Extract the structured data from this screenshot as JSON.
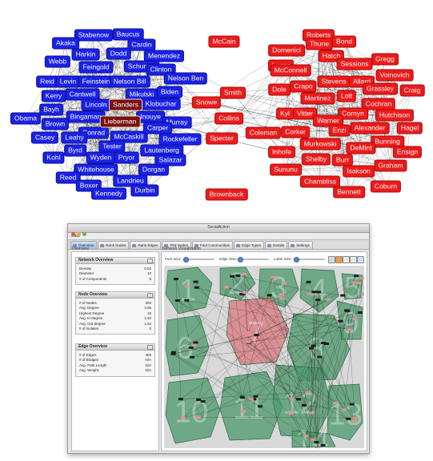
{
  "senate": {
    "democrats": [
      "Stabenow",
      "Baucus",
      "Akaka",
      "Cardin",
      "Harkin",
      "Dodd",
      "Webb",
      "Menendez",
      "Feingold",
      "Schumer",
      "Clinton",
      "Reid",
      "Levin",
      "Feinstein",
      "Nelson Bill",
      "Nelson Ben",
      "Kerry",
      "Cantwell",
      "Mikulski",
      "Biden",
      "Lincoln",
      "Klobuchar",
      "Bayh",
      "Obama",
      "Bingaman",
      "Inouye",
      "Brown",
      "Conrad",
      "Murray",
      "Casey",
      "Leahy",
      "McCaskill",
      "Carper",
      "Rockefeller",
      "Kohl",
      "Byrd",
      "Tester",
      "Wyden",
      "Pryor",
      "Lautenberg",
      "Whitehouse",
      "Dorgan",
      "Salazar",
      "Reed",
      "Boxer",
      "Landrieu",
      "Kennedy",
      "Durbin"
    ],
    "independents_highlighted": [
      "Sanders",
      "Lieberman"
    ],
    "bridging": [
      "McCain",
      "Snowe",
      "Smith",
      "Collins",
      "Specter",
      "Brownback"
    ],
    "republicans": [
      "Roberts",
      "Thune",
      "Bond",
      "Domenici",
      "Hatch",
      "Gregg",
      "Lugar",
      "Sessions",
      "Voinovich",
      "McConnell",
      "Stevens",
      "Allard",
      "Dole",
      "Crapo",
      "Grassley",
      "Craig",
      "Martinez",
      "Lott",
      "Cochran",
      "Kyl",
      "Vitter",
      "Cornyn",
      "Hutchison",
      "Corker",
      "Warner",
      "Coleman",
      "Enzi",
      "Alexander",
      "Hagel",
      "Murkowski",
      "Bunning",
      "Inhofe",
      "DeMint",
      "Ensign",
      "Shelby",
      "Burr",
      "Graham",
      "Sununu",
      "Isakson",
      "Chambliss",
      "Bennett",
      "Coburn"
    ]
  },
  "colors": {
    "democrat": "#1a21e8",
    "republican": "#ee1a1a",
    "highlighted": "#7a1010",
    "community_fill": "#4f9a6e",
    "community_highlight": "#d9777c"
  },
  "app": {
    "window_title": "SocialAction",
    "menu": [
      "Data"
    ],
    "tabs": [
      "Overview",
      "Rank Nodes",
      "Rank Edges",
      "Plot Nodes",
      "Find Communities",
      "Edge Types",
      "Details",
      "Settings"
    ],
    "active_tab": "Overview",
    "left_pane_label": "Overview",
    "right_pane_label": "Network Visualization",
    "sliders": {
      "font": "Font Size:",
      "edge": "Edge Size:",
      "label": "Label Size:"
    },
    "network_overview": {
      "title": "Network Overview",
      "rows": [
        {
          "label": "Density",
          "value": "0.02"
        },
        {
          "label": "Diameter",
          "value": "10"
        },
        {
          "label": "# of Components",
          "value": "8"
        }
      ]
    },
    "node_overview": {
      "title": "Node Overview",
      "rows": [
        {
          "label": "# of Nodes",
          "value": "200"
        },
        {
          "label": "Avg. Degree",
          "value": "3.05"
        },
        {
          "label": "Highest Degree",
          "value": "19"
        },
        {
          "label": "Avg. In-degree",
          "value": "1.52"
        },
        {
          "label": "Avg. Out-degree",
          "value": "1.52"
        },
        {
          "label": "# of Isolates",
          "value": "0"
        }
      ]
    },
    "edge_overview": {
      "title": "Edge Overview",
      "rows": [
        {
          "label": "# of Edges",
          "value": "305"
        },
        {
          "label": "# of Bridges",
          "value": "N/A"
        },
        {
          "label": "Avg. Path Length",
          "value": "N/A"
        },
        {
          "label": "Avg. Weight",
          "value": "N/A"
        }
      ]
    },
    "community_numbers": [
      "1",
      "2",
      "3",
      "4",
      "5",
      "6",
      "7",
      "8",
      "9",
      "10",
      "11",
      "12",
      "13",
      "14"
    ]
  }
}
